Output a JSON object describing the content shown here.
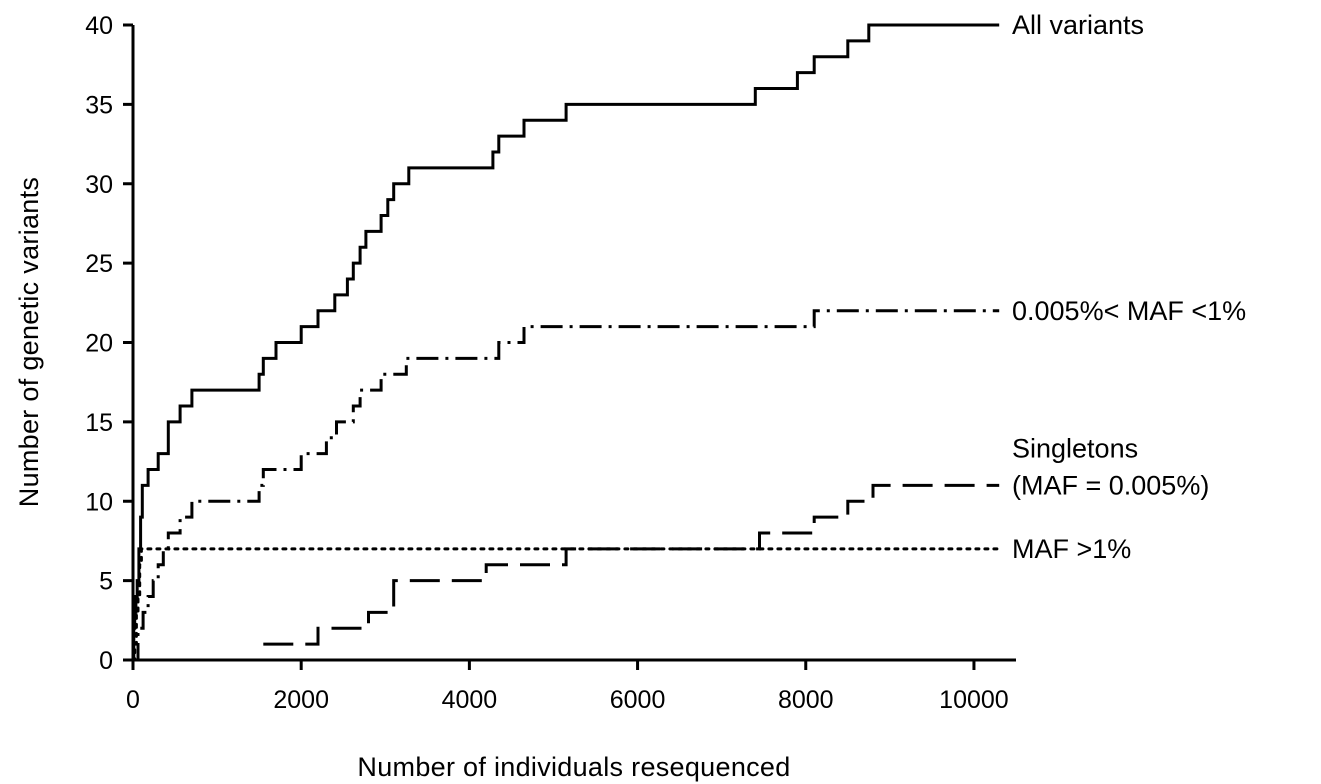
{
  "chart_data": {
    "type": "line",
    "title": "",
    "xlabel": "Number of individuals resequenced",
    "ylabel": "Number of genetic variants",
    "xlim": [
      0,
      10500
    ],
    "ylim": [
      0,
      40
    ],
    "x_ticks": [
      "0",
      "2000",
      "4000",
      "6000",
      "8000",
      "10000"
    ],
    "y_ticks": [
      "0",
      "5",
      "10",
      "15",
      "20",
      "25",
      "30",
      "35",
      "40"
    ],
    "grid": false,
    "legend": "none (series labelled at line ends)",
    "series": [
      {
        "name": "All variants",
        "style": "solid",
        "x": [
          0,
          10,
          20,
          35,
          50,
          70,
          90,
          110,
          140,
          180,
          230,
          300,
          420,
          560,
          700,
          1400,
          1500,
          1550,
          1700,
          1900,
          2000,
          2100,
          2200,
          2300,
          2400,
          2500,
          2550,
          2620,
          2700,
          2770,
          2850,
          2950,
          3030,
          3100,
          3200,
          3280,
          4200,
          4280,
          4350,
          4650,
          5150,
          7400,
          7800,
          7900,
          8100,
          8500,
          8650,
          8750,
          10300
        ],
        "y": [
          0,
          2,
          3,
          4,
          5,
          7,
          9,
          11,
          11,
          12,
          12,
          13,
          15,
          16,
          17,
          17,
          18,
          19,
          20,
          20,
          21,
          21,
          22,
          22,
          23,
          23,
          24,
          25,
          26,
          27,
          27,
          28,
          29,
          30,
          30,
          31,
          31,
          32,
          33,
          34,
          35,
          36,
          36,
          37,
          38,
          39,
          39,
          40,
          40
        ]
      },
      {
        "name": "0.005%< MAF <1%",
        "style": "dash-dot",
        "x": [
          0,
          60,
          120,
          180,
          240,
          300,
          360,
          420,
          560,
          700,
          1400,
          1500,
          1550,
          1700,
          1900,
          2000,
          2100,
          2300,
          2420,
          2550,
          2620,
          2700,
          2800,
          2950,
          3100,
          3250,
          4200,
          4350,
          4650,
          8000,
          8100,
          10300
        ],
        "y": [
          0,
          2,
          3,
          4,
          5,
          6,
          7,
          8,
          9,
          10,
          10,
          11,
          12,
          12,
          12,
          13,
          13,
          14,
          15,
          15,
          16,
          17,
          17,
          18,
          18,
          19,
          19,
          20,
          21,
          21,
          22,
          22
        ]
      },
      {
        "name": "Singletons",
        "name_line2": "(MAF = 0.005%)",
        "style": "long-dash",
        "x": [
          1550,
          2100,
          2200,
          2750,
          2800,
          3000,
          3100,
          4100,
          4200,
          5000,
          5150,
          7400,
          7450,
          7800,
          8100,
          8400,
          8500,
          8700,
          8800,
          10300
        ],
        "y": [
          1,
          1,
          2,
          2,
          3,
          3,
          5,
          5,
          6,
          6,
          7,
          7,
          8,
          8,
          9,
          9,
          10,
          10,
          11,
          11
        ]
      },
      {
        "name": "MAF >1%",
        "style": "dotted",
        "x": [
          0,
          20,
          40,
          60,
          80,
          100,
          10300
        ],
        "y": [
          0,
          1,
          3,
          4,
          6,
          7,
          7
        ]
      }
    ]
  }
}
